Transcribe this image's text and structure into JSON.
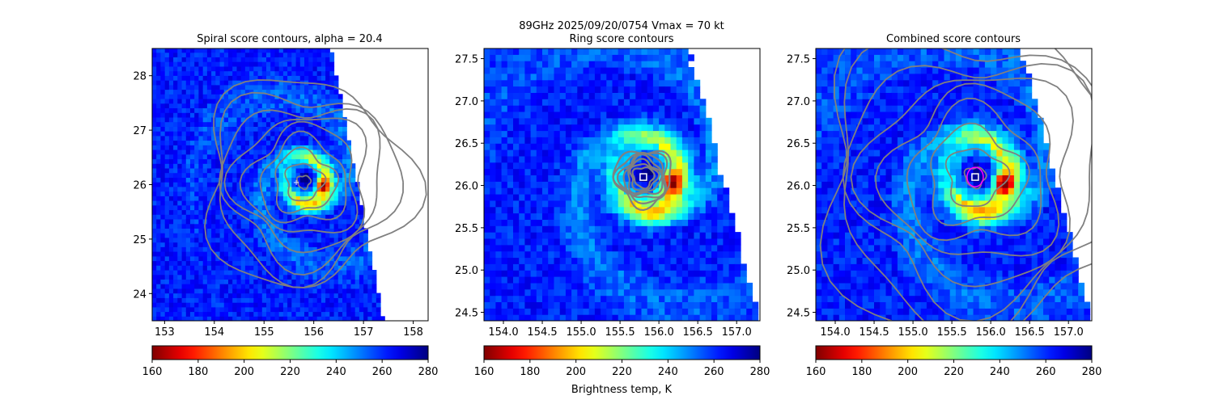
{
  "suptitle_line1": "89GHz  2025/09/20/0754    Vmax = 70 kt",
  "colorbar_label": "Brightness temp, K",
  "colors": {
    "contour": "#808080",
    "marker": "#ffffff",
    "center_ring": "#ff00ff"
  },
  "colormap": "jet_reversed",
  "chart_data": [
    {
      "type": "heatmap",
      "title": "Spiral score contours, alpha = 20.4",
      "xlim": [
        152.75,
        158.3
      ],
      "ylim": [
        23.5,
        28.5
      ],
      "xticks": [
        "153",
        "154",
        "155",
        "156",
        "157",
        "158"
      ],
      "xtick_values": [
        153,
        154,
        155,
        156,
        157,
        158
      ],
      "yticks": [
        "24",
        "25",
        "26",
        "27",
        "28"
      ],
      "ytick_values": [
        24,
        25,
        26,
        27,
        28
      ],
      "center": [
        155.8,
        26.05
      ],
      "swath_edge_lon_at_top": 156.3,
      "swath_edge_lon_at_bottom": 157.35,
      "colorbar": {
        "min": 160,
        "max": 280,
        "ticks": [
          "160",
          "180",
          "200",
          "220",
          "240",
          "260",
          "280"
        ],
        "tick_values": [
          160,
          180,
          200,
          220,
          240,
          260,
          280
        ]
      }
    },
    {
      "type": "heatmap",
      "title": "Ring score contours",
      "xlim": [
        153.75,
        157.3
      ],
      "ylim": [
        24.4,
        27.62
      ],
      "xticks": [
        "154.0",
        "154.5",
        "155.0",
        "155.5",
        "156.0",
        "156.5",
        "157.0"
      ],
      "xtick_values": [
        154.0,
        154.5,
        155.0,
        155.5,
        156.0,
        156.5,
        157.0
      ],
      "yticks": [
        "24.5",
        "25.0",
        "25.5",
        "26.0",
        "26.5",
        "27.0",
        "27.5"
      ],
      "ytick_values": [
        24.5,
        25.0,
        25.5,
        26.0,
        26.5,
        27.0,
        27.5
      ],
      "center": [
        155.8,
        26.1
      ],
      "colorbar": {
        "min": 160,
        "max": 280,
        "ticks": [
          "160",
          "180",
          "200",
          "220",
          "240",
          "260",
          "280"
        ],
        "tick_values": [
          160,
          180,
          200,
          220,
          240,
          260,
          280
        ]
      }
    },
    {
      "type": "heatmap",
      "title": "Combined score contours",
      "xlim": [
        153.75,
        157.3
      ],
      "ylim": [
        24.4,
        27.62
      ],
      "xticks": [
        "154.0",
        "154.5",
        "155.0",
        "155.5",
        "156.0",
        "156.5",
        "157.0"
      ],
      "xtick_values": [
        154.0,
        154.5,
        155.0,
        155.5,
        156.0,
        156.5,
        157.0
      ],
      "yticks": [
        "24.5",
        "25.0",
        "25.5",
        "26.0",
        "26.5",
        "27.0",
        "27.5"
      ],
      "ytick_values": [
        24.5,
        25.0,
        25.5,
        26.0,
        26.5,
        27.0,
        27.5
      ],
      "center": [
        155.8,
        26.1
      ],
      "colorbar": {
        "min": 160,
        "max": 280,
        "ticks": [
          "160",
          "180",
          "200",
          "220",
          "240",
          "260",
          "280"
        ],
        "tick_values": [
          160,
          180,
          200,
          220,
          240,
          260,
          280
        ]
      }
    }
  ]
}
